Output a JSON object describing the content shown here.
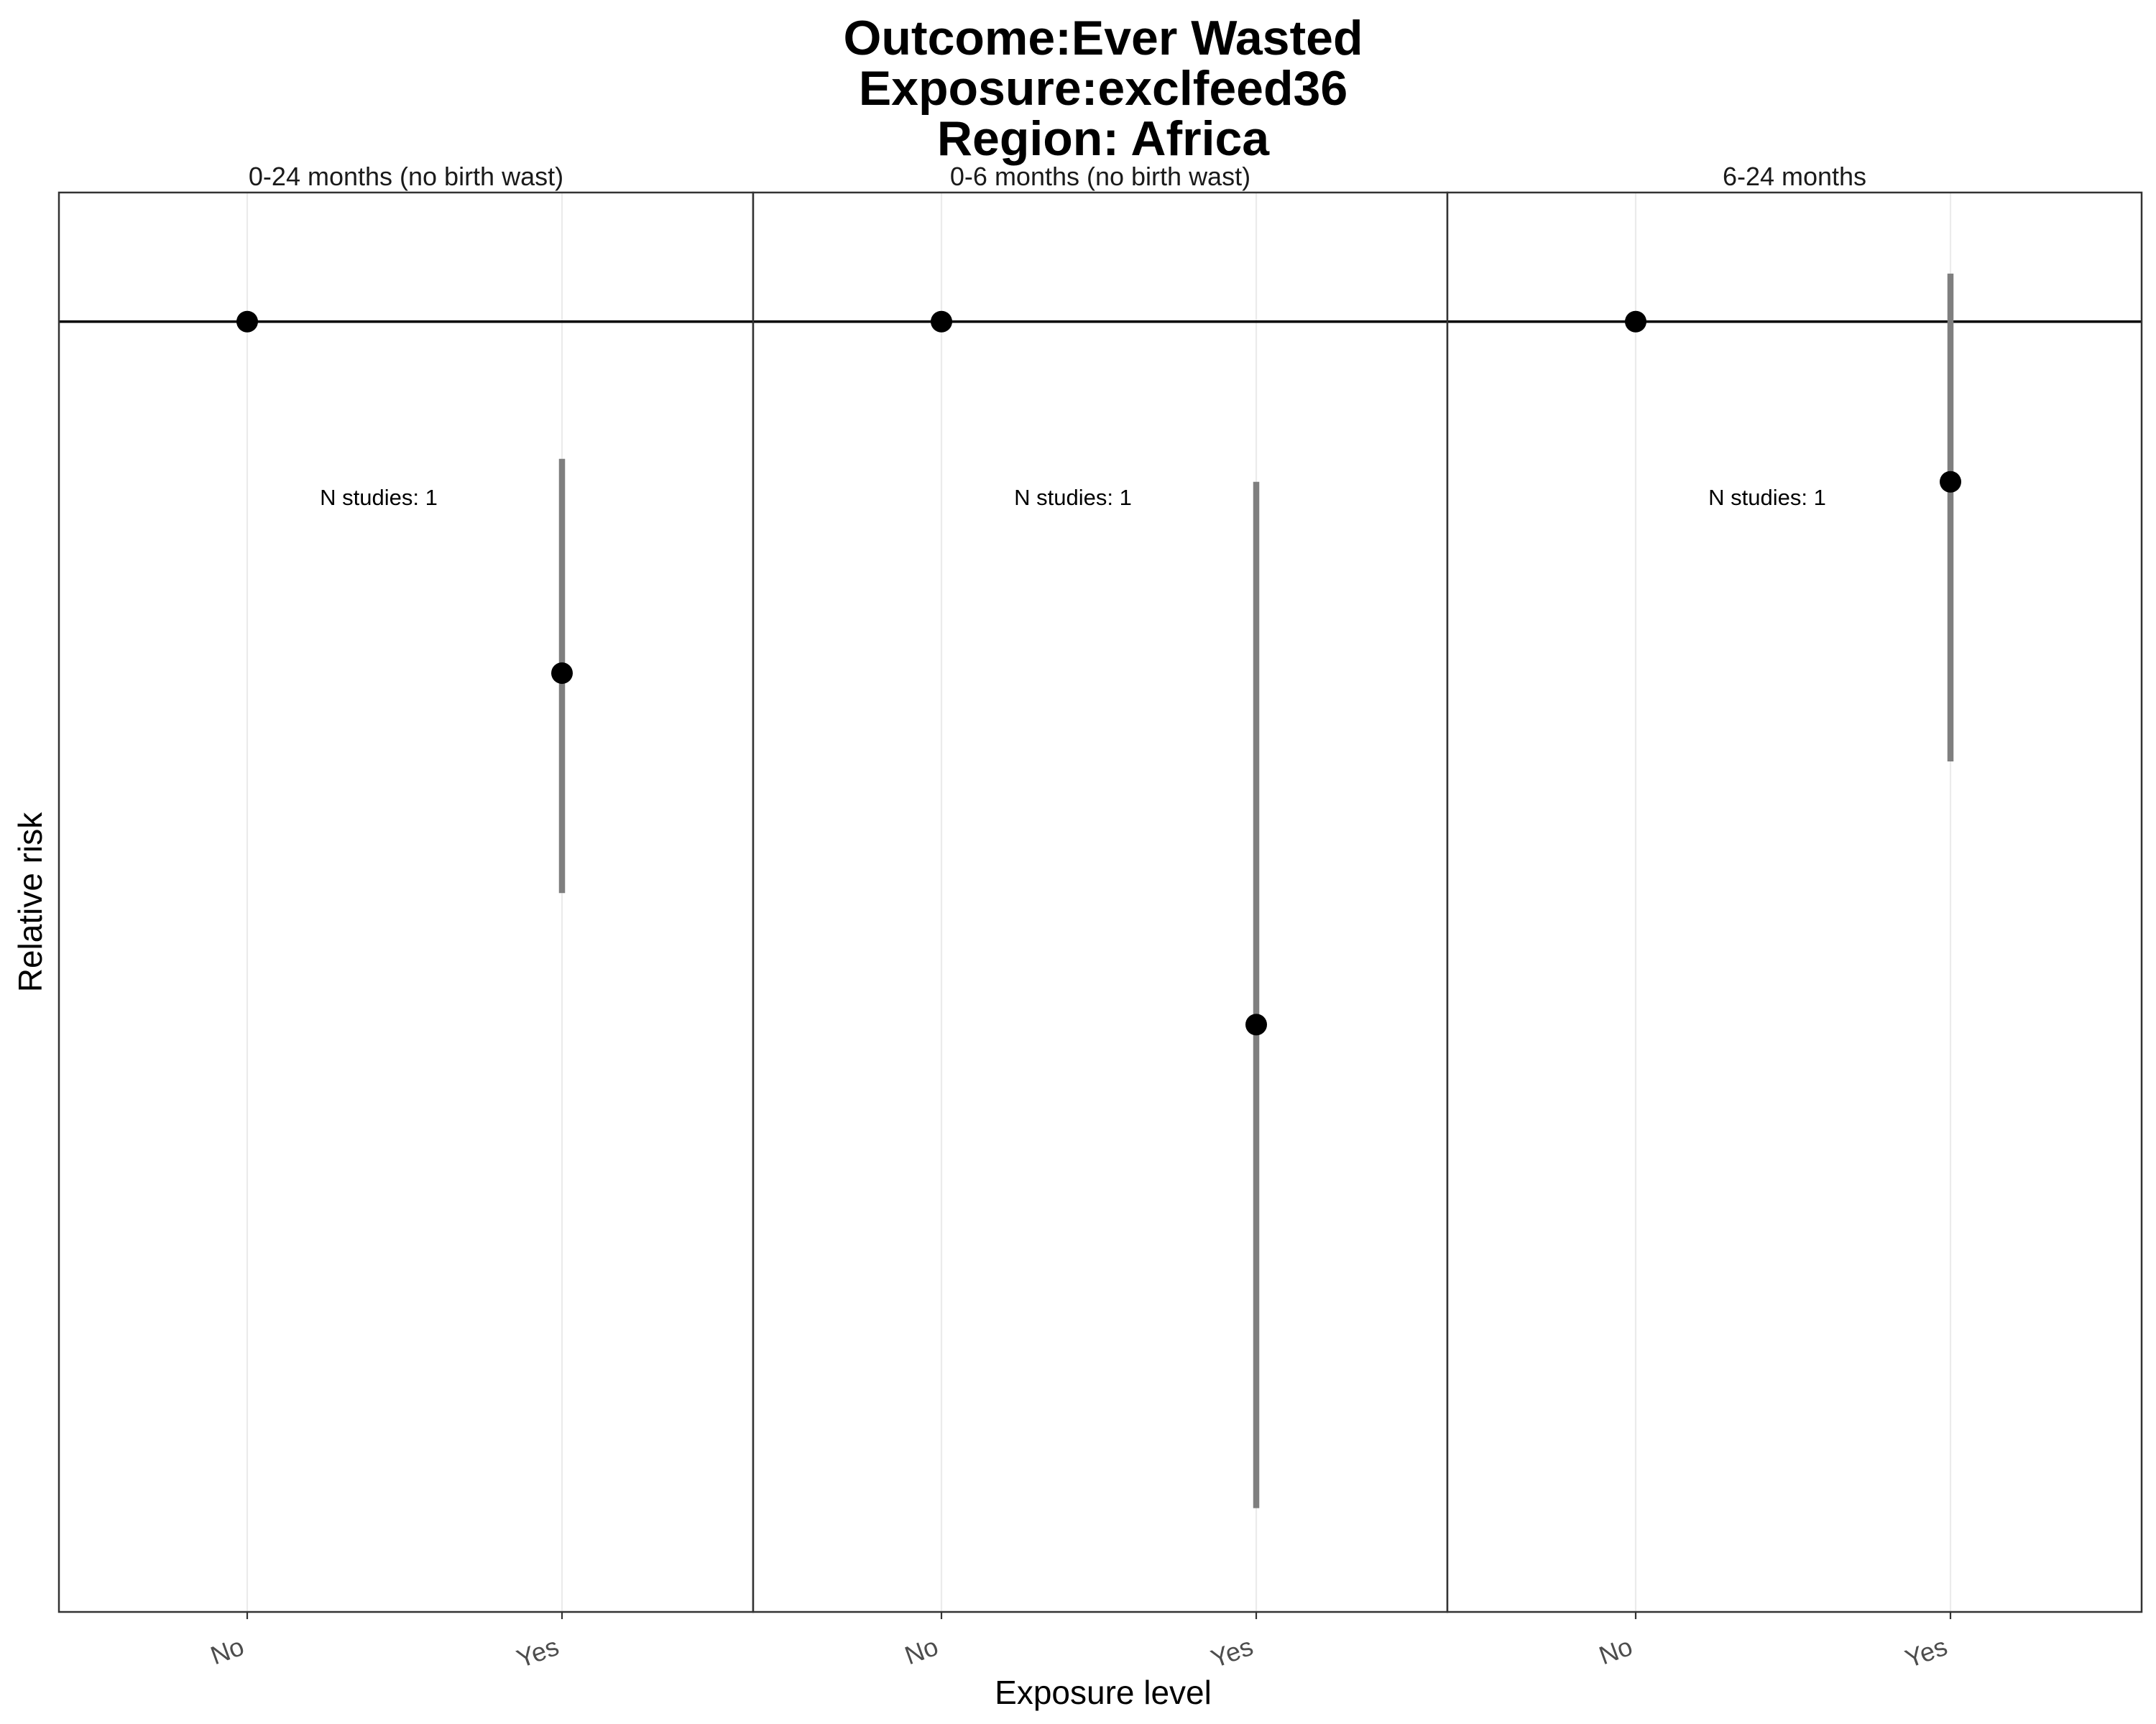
{
  "chart_data": {
    "type": "scatter",
    "title_lines": [
      "Outcome:Ever Wasted",
      "Exposure:exclfeed36",
      "Region: Africa"
    ],
    "xlabel": "Exposure level",
    "ylabel": "Relative risk",
    "categories": [
      "No",
      "Yes"
    ],
    "reference_line": 1,
    "y_tick_labels_shown": false,
    "y_scale": "log",
    "ylim": [
      0.27,
      1.14
    ],
    "grid": "vertical major gridlines only",
    "legend": "none",
    "panels": [
      {
        "label": "0-24 months (no birth wast)",
        "annotation": "N studies: 1",
        "points": [
          {
            "x": "No",
            "estimate": 1.0,
            "ci_lower": null,
            "ci_upper": null
          },
          {
            "x": "Yes",
            "estimate": 0.7,
            "ci_lower": 0.56,
            "ci_upper": 0.87
          }
        ]
      },
      {
        "label": "0-6 months (no birth wast)",
        "annotation": "N studies: 1",
        "points": [
          {
            "x": "No",
            "estimate": 1.0,
            "ci_lower": null,
            "ci_upper": null
          },
          {
            "x": "Yes",
            "estimate": 0.49,
            "ci_lower": 0.3,
            "ci_upper": 0.85
          }
        ]
      },
      {
        "label": "6-24 months",
        "annotation": "N studies: 1",
        "points": [
          {
            "x": "No",
            "estimate": 1.0,
            "ci_lower": null,
            "ci_upper": null
          },
          {
            "x": "Yes",
            "estimate": 0.85,
            "ci_lower": 0.64,
            "ci_upper": 1.05
          }
        ]
      }
    ]
  },
  "colors": {
    "point": "#000000",
    "errorbar": "#7f7f7f",
    "reference_line": "#000000",
    "panel_border": "#333333",
    "gridline": "#ebebeb",
    "background": "#ffffff"
  }
}
